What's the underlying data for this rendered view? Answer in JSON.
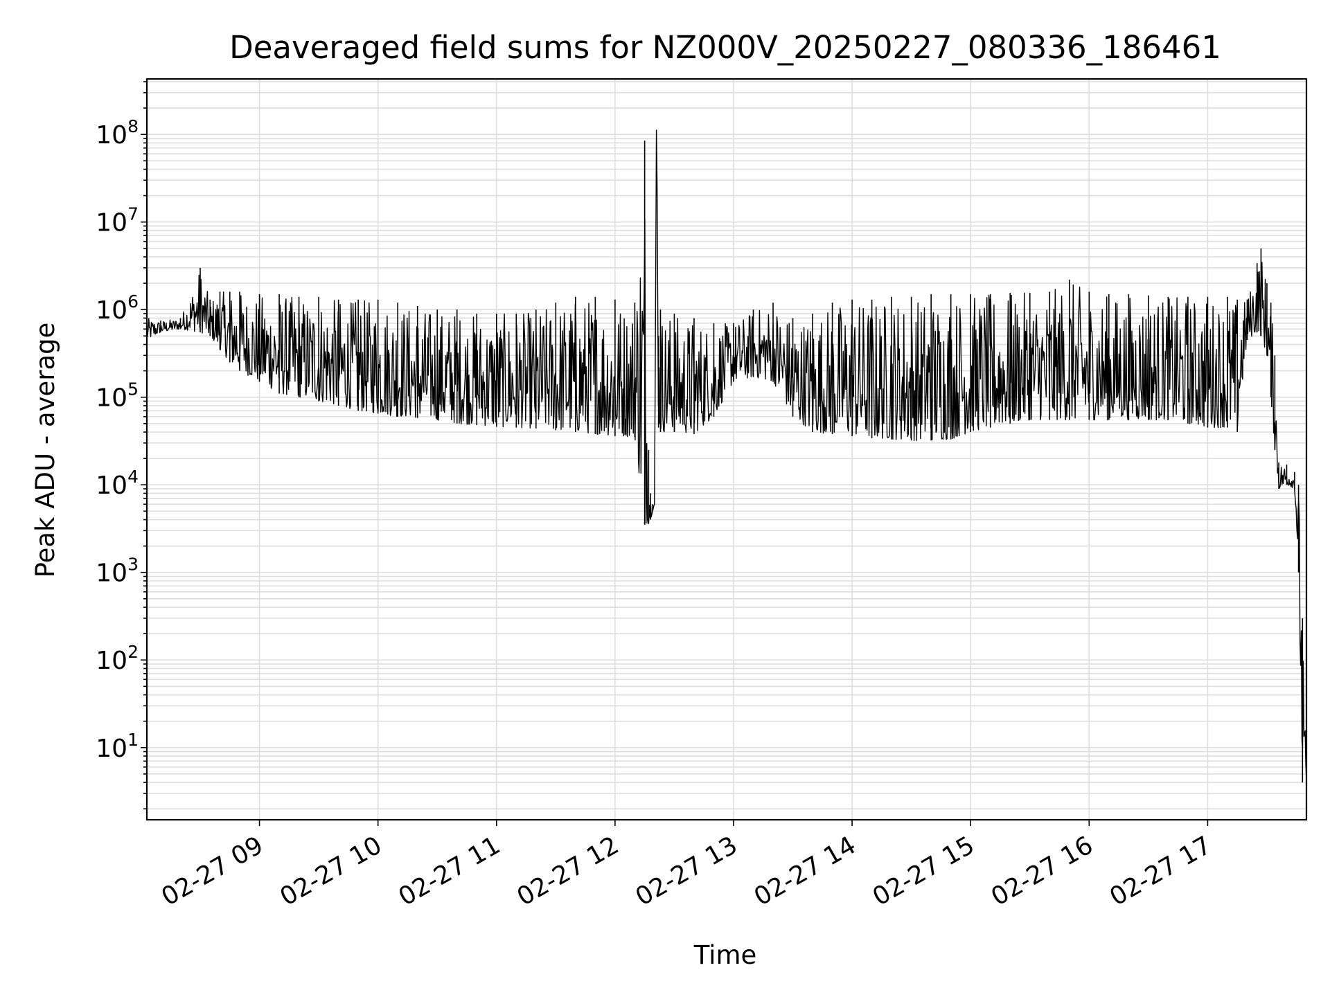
{
  "chart_data": {
    "type": "line",
    "title": "Deaveraged field sums for NZ000V_20250227_080336_186461",
    "xlabel": "Time",
    "ylabel": "Peak ADU - average",
    "yscale": "log",
    "ylim": [
      1.5,
      430000000
    ],
    "xlim": [
      "2025-02-27 08:03",
      "2025-02-27 17:50"
    ],
    "grid": "both major and minor, light gray",
    "line_color": "#000000",
    "x_ticks": [
      "02-27 09",
      "02-27 10",
      "02-27 11",
      "02-27 12",
      "02-27 13",
      "02-27 14",
      "02-27 15",
      "02-27 16",
      "02-27 17"
    ],
    "y_ticks": [
      {
        "base": "10",
        "exp": "1",
        "value": 10
      },
      {
        "base": "10",
        "exp": "2",
        "value": 100
      },
      {
        "base": "10",
        "exp": "3",
        "value": 1000
      },
      {
        "base": "10",
        "exp": "4",
        "value": 10000
      },
      {
        "base": "10",
        "exp": "5",
        "value": 100000
      },
      {
        "base": "10",
        "exp": "6",
        "value": 1000000
      },
      {
        "base": "10",
        "exp": "7",
        "value": 10000000
      },
      {
        "base": "10",
        "exp": "8",
        "value": 100000000
      }
    ],
    "series": [
      {
        "x": [
          "2025-02-27 08:03",
          "2025-02-27 08:10",
          "2025-02-27 08:20",
          "2025-02-27 08:30",
          "2025-02-27 08:35",
          "2025-02-27 08:40",
          "2025-02-27 08:45",
          "2025-02-27 08:50",
          "2025-02-27 09:00",
          "2025-02-27 09:10",
          "2025-02-27 09:20",
          "2025-02-27 09:30",
          "2025-02-27 09:40",
          "2025-02-27 09:50",
          "2025-02-27 10:00",
          "2025-02-27 10:10",
          "2025-02-27 10:20",
          "2025-02-27 10:30",
          "2025-02-27 10:40",
          "2025-02-27 10:50",
          "2025-02-27 11:00",
          "2025-02-27 11:10",
          "2025-02-27 11:20",
          "2025-02-27 11:30",
          "2025-02-27 11:40",
          "2025-02-27 11:50",
          "2025-02-27 12:00",
          "2025-02-27 12:10",
          "2025-02-27 12:15",
          "2025-02-27 12:17",
          "2025-02-27 12:18",
          "2025-02-27 12:19",
          "2025-02-27 12:20",
          "2025-02-27 12:21",
          "2025-02-27 12:22",
          "2025-02-27 12:23",
          "2025-02-27 12:30",
          "2025-02-27 12:40",
          "2025-02-27 12:50",
          "2025-02-27 13:00",
          "2025-02-27 13:10",
          "2025-02-27 13:20",
          "2025-02-27 13:30",
          "2025-02-27 13:40",
          "2025-02-27 13:50",
          "2025-02-27 14:00",
          "2025-02-27 14:10",
          "2025-02-27 14:20",
          "2025-02-27 14:30",
          "2025-02-27 14:40",
          "2025-02-27 14:50",
          "2025-02-27 15:00",
          "2025-02-27 15:10",
          "2025-02-27 15:20",
          "2025-02-27 15:30",
          "2025-02-27 15:40",
          "2025-02-27 15:50",
          "2025-02-27 16:00",
          "2025-02-27 16:10",
          "2025-02-27 16:20",
          "2025-02-27 16:30",
          "2025-02-27 16:40",
          "2025-02-27 16:50",
          "2025-02-27 17:00",
          "2025-02-27 17:10",
          "2025-02-27 17:15",
          "2025-02-27 17:20",
          "2025-02-27 17:25",
          "2025-02-27 17:27",
          "2025-02-27 17:30",
          "2025-02-27 17:32",
          "2025-02-27 17:34",
          "2025-02-27 17:36",
          "2025-02-27 17:40",
          "2025-02-27 17:44",
          "2025-02-27 17:46",
          "2025-02-27 17:48",
          "2025-02-27 17:50"
        ],
        "y_low": [
          450000,
          550000,
          600000,
          550000,
          500000,
          350000,
          250000,
          200000,
          150000,
          110000,
          100000,
          90000,
          80000,
          70000,
          65000,
          60000,
          58000,
          55000,
          50000,
          48000,
          46000,
          45000,
          44000,
          42000,
          40000,
          38000,
          36000,
          35000,
          3500,
          3600,
          4000,
          5000,
          6000,
          180000000,
          45000,
          40000,
          40000,
          38000,
          60000,
          150000,
          170000,
          150000,
          60000,
          40000,
          38000,
          36000,
          34000,
          33000,
          32000,
          32000,
          33000,
          40000,
          45000,
          50000,
          55000,
          55000,
          55000,
          55000,
          55000,
          55000,
          55000,
          55000,
          50000,
          45000,
          45000,
          40000,
          450000,
          550000,
          500000,
          300000,
          100000,
          25000,
          9000,
          10000,
          9000,
          1000,
          4,
          4
        ],
        "y_high": [
          800000,
          750000,
          800000,
          3000000,
          1300000,
          1600000,
          1600000,
          1600000,
          1500000,
          1500000,
          1400000,
          1400000,
          1300000,
          1300000,
          1300000,
          1200000,
          1100000,
          1000000,
          1000000,
          900000,
          900000,
          900000,
          1000000,
          1200000,
          1400000,
          1400000,
          1300000,
          1200000,
          85000000,
          25000,
          8000,
          6000,
          6000,
          180000000,
          500000,
          1000000,
          900000,
          800000,
          700000,
          700000,
          1000000,
          1200000,
          800000,
          900000,
          1200000,
          1300000,
          1300000,
          1400000,
          1400000,
          1500000,
          1500000,
          1500000,
          1500000,
          1550000,
          1550000,
          1600000,
          2200000,
          1600000,
          1500000,
          1500000,
          1450000,
          1400000,
          1400000,
          1400000,
          1400000,
          1300000,
          1300000,
          3400000,
          5000000,
          2000000,
          1200000,
          300000,
          18000,
          17000,
          14000,
          10000,
          300,
          4
        ]
      }
    ]
  }
}
